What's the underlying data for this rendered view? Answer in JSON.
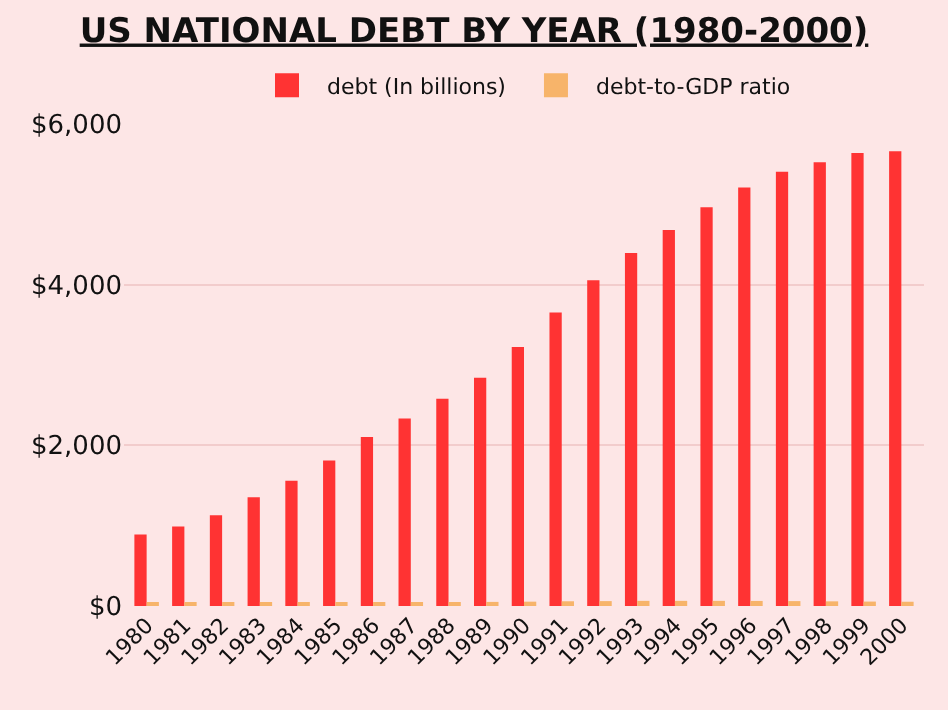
{
  "chart_data": {
    "type": "bar",
    "title": "US NATIONAL DEBT BY YEAR (1980-2000)",
    "categories": [
      "1980",
      "1981",
      "1982",
      "1983",
      "1984",
      "1985",
      "1986",
      "1987",
      "1988",
      "1989",
      "1990",
      "1991",
      "1992",
      "1993",
      "1994",
      "1995",
      "1996",
      "1997",
      "1998",
      "1999",
      "2000"
    ],
    "series": [
      {
        "name": "debt (In billions)",
        "color": "#ff3333",
        "values": [
          890,
          990,
          1130,
          1355,
          1560,
          1810,
          2105,
          2335,
          2580,
          2840,
          3225,
          3655,
          4055,
          4395,
          4680,
          4965,
          5210,
          5405,
          5525,
          5640,
          5660
        ]
      },
      {
        "name": "debt-to-GDP ratio",
        "color": "#f7b46a",
        "values": [
          31,
          31,
          34,
          38,
          39,
          42,
          46,
          48,
          50,
          51,
          54,
          59,
          61,
          64,
          64,
          64,
          63,
          61,
          58,
          55,
          53
        ]
      }
    ],
    "ylim": [
      0,
      6000
    ],
    "yticks": [
      {
        "value": 0,
        "label": "$0"
      },
      {
        "value": 2000,
        "label": "$2,000"
      },
      {
        "value": 4000,
        "label": "$4,000"
      },
      {
        "value": 6000,
        "label": "$6,000"
      }
    ],
    "grid": "y",
    "legend": "top"
  }
}
